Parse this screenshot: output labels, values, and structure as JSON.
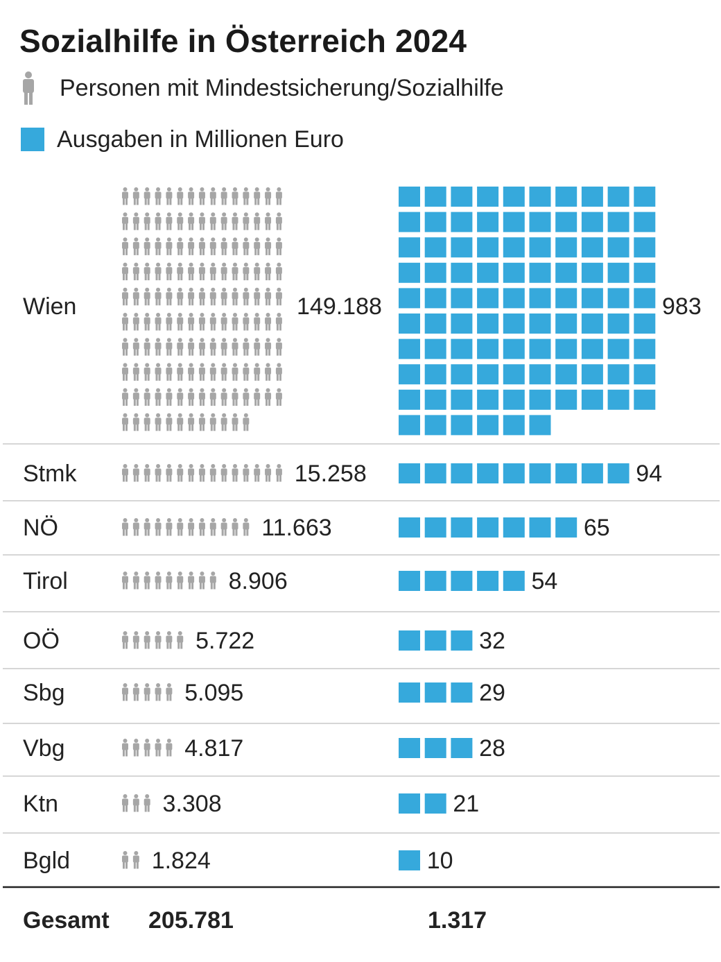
{
  "chart_data": {
    "type": "pictogram",
    "title": "Sozialhilfe in Österreich 2024",
    "legend": [
      {
        "label": "Personen mit Mindestsicherung/Sozialhilfe",
        "icon": "person-icon",
        "color": "#a6a6a6"
      },
      {
        "label": "Ausgaben in Millionen Euro",
        "icon": "square",
        "color": "#36a9dc"
      }
    ],
    "categories": [
      "Wien",
      "Stmk",
      "NÖ",
      "Tirol",
      "OÖ",
      "Sbg",
      "Vbg",
      "Ktn",
      "Bgld"
    ],
    "series": [
      {
        "name": "Personen mit Mindestsicherung/Sozialhilfe",
        "values": [
          149188,
          15258,
          11663,
          8906,
          5722,
          5095,
          4817,
          3308,
          1824
        ],
        "labels": [
          "149.188",
          "15.258",
          "11.663",
          "8.906",
          "5.722",
          "5.095",
          "4.817",
          "3.308",
          "1.824"
        ],
        "icons_shown": [
          147,
          15,
          12,
          9,
          6,
          5,
          5,
          3,
          2
        ]
      },
      {
        "name": "Ausgaben in Millionen Euro",
        "values": [
          983,
          94,
          65,
          54,
          32,
          29,
          28,
          21,
          10
        ],
        "labels": [
          "983",
          "94",
          "65",
          "54",
          "32",
          "29",
          "28",
          "21",
          "10"
        ],
        "squares_shown": [
          96,
          9,
          7,
          5,
          3,
          3,
          3,
          2,
          1
        ]
      }
    ],
    "total": {
      "label": "Gesamt",
      "persons": "205.781",
      "spending": "1.317"
    },
    "colors": {
      "person": "#a6a6a6",
      "square": "#36a9dc",
      "divider": "#d6d6d6",
      "total_rule": "#222222"
    }
  }
}
